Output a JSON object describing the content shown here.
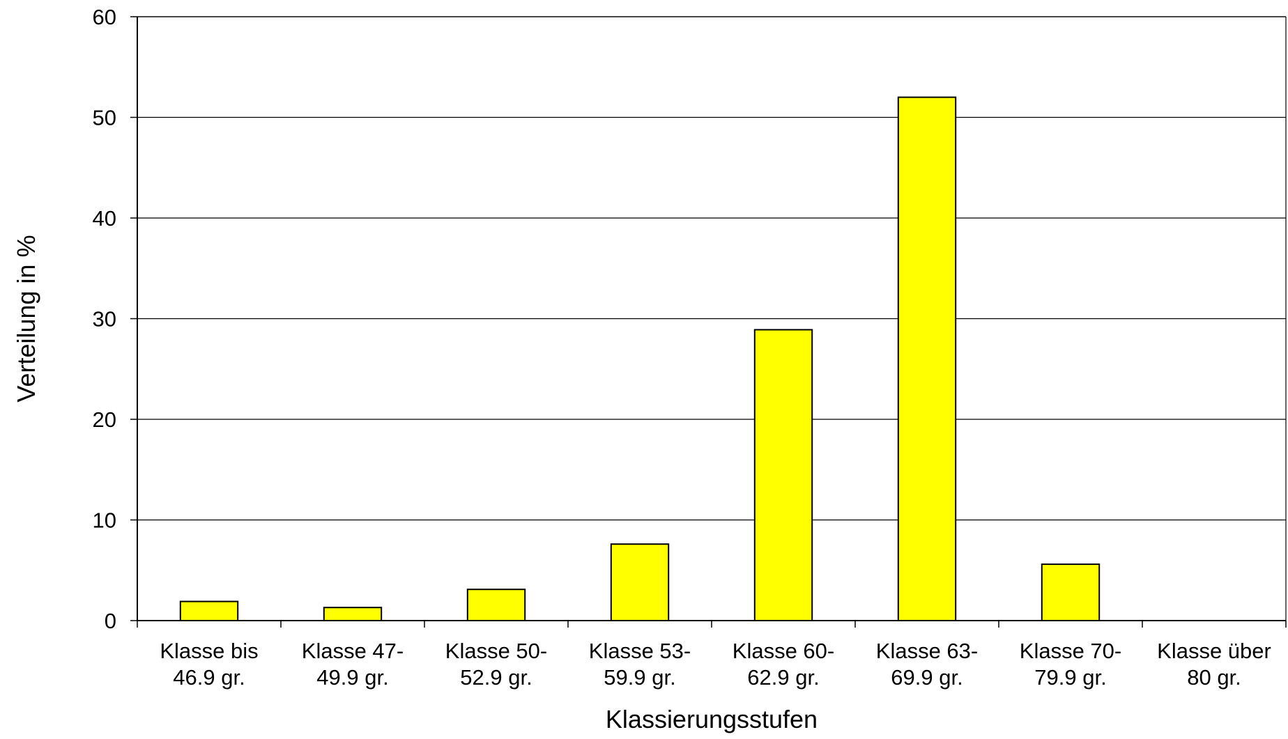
{
  "chart_data": {
    "type": "bar",
    "title": "",
    "xlabel": "Klassierungsstufen",
    "ylabel": "Verteilung in %",
    "ylim": [
      0,
      60
    ],
    "yticks": [
      0,
      10,
      20,
      30,
      40,
      50,
      60
    ],
    "grid": true,
    "legend": "none",
    "categories": [
      [
        "Klasse bis",
        "46.9 gr."
      ],
      [
        "Klasse 47-",
        "49.9 gr."
      ],
      [
        "Klasse 50-",
        "52.9 gr."
      ],
      [
        "Klasse 53-",
        "59.9 gr."
      ],
      [
        "Klasse 60-",
        "62.9 gr."
      ],
      [
        "Klasse 63-",
        "69.9 gr."
      ],
      [
        "Klasse 70-",
        "79.9 gr."
      ],
      [
        "Klasse über",
        "80 gr."
      ]
    ],
    "values": [
      1.9,
      1.3,
      3.1,
      7.6,
      28.9,
      52.0,
      5.6,
      0
    ],
    "colors": {
      "bar_fill": "#ffff00",
      "bar_stroke": "#000000",
      "grid": "#000000",
      "axis": "#000000"
    }
  }
}
